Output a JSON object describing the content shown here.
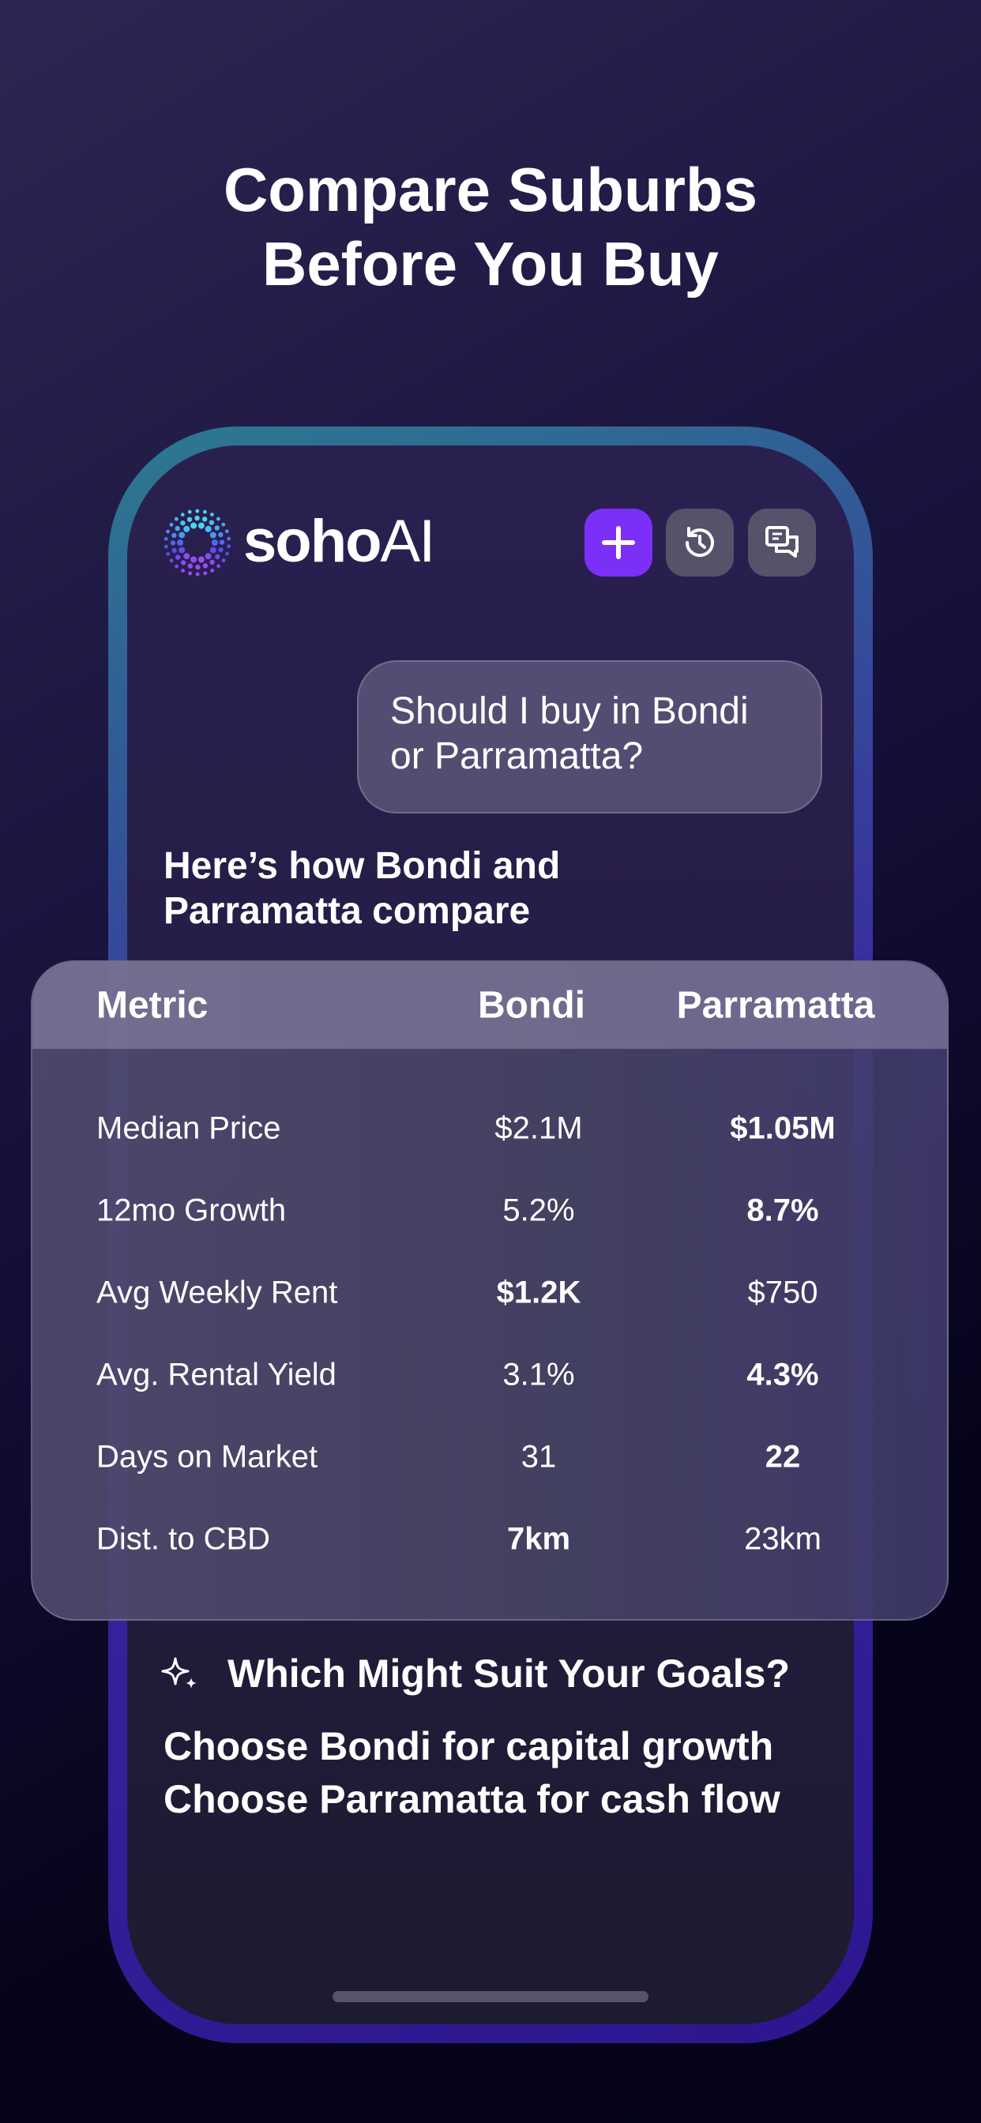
{
  "header": {
    "title_lines": [
      "Compare Suburbs",
      "Before You Buy"
    ]
  },
  "app": {
    "logo": {
      "part1": "soho",
      "part2": "AI"
    }
  },
  "chat": {
    "user_message_lines": [
      "Should I buy in Bondi",
      "or Parramatta?"
    ],
    "response_heading_lines": [
      "Here’s how Bondi and",
      "Parramatta compare"
    ],
    "table": {
      "headers": [
        "Metric",
        "Bondi",
        "Parramatta"
      ],
      "rows": [
        [
          "Median Price",
          "$2.1M",
          "$1.05M"
        ],
        [
          "12mo Growth",
          "5.2%",
          "8.7%"
        ],
        [
          "Avg Weekly Rent",
          "$1.2K",
          "$750"
        ],
        [
          "Avg. Rental Yield",
          "3.1%",
          "4.3%"
        ],
        [
          "Days on Market",
          "31",
          "22"
        ],
        [
          "Dist. to CBD",
          "7km",
          "23km"
        ]
      ]
    },
    "goals_heading": "Which Might Suit Your Goals?",
    "goals_lines": [
      "Choose Bondi for capital growth",
      "Choose Parramatta for cash flow"
    ]
  }
}
